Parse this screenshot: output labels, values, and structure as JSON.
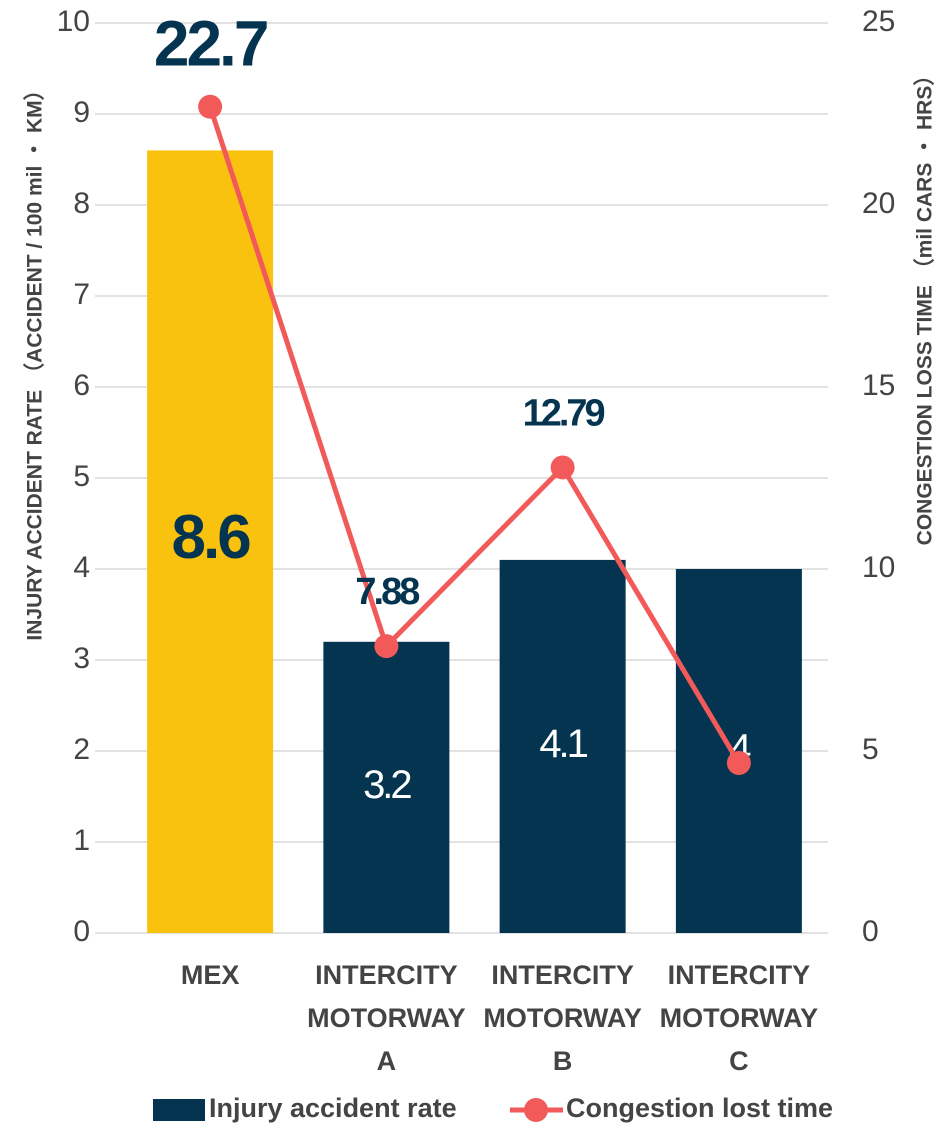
{
  "chart_data": {
    "type": "bar_line",
    "categories": [
      [
        "MEX"
      ],
      [
        "INTERCITY",
        "MOTORWAY",
        "A"
      ],
      [
        "INTERCITY",
        "MOTORWAY",
        "B"
      ],
      [
        "INTERCITY",
        "MOTORWAY",
        "C"
      ]
    ],
    "ylabel": "INJURY ACCIDENT RATE （ACCIDENT / 100 mil ・ KM）",
    "y2label": "CONGESTION LOSS TIME （mil CARS ・ HRS）",
    "ylim": [
      0,
      10
    ],
    "yticks": [
      0,
      1,
      2,
      3,
      4,
      5,
      6,
      7,
      8,
      9,
      10
    ],
    "y2lim": [
      0,
      25
    ],
    "y2ticks": [
      0,
      5,
      10,
      15,
      20,
      25
    ],
    "grid": true,
    "legend": "bottom",
    "series": [
      {
        "name": "Injury accident rate",
        "type": "bar",
        "color": "#04344f",
        "colors": [
          "#f9c20f",
          "#04344f",
          "#04344f",
          "#04344f"
        ],
        "values": [
          8.6,
          3.2,
          4.1,
          4
        ]
      },
      {
        "name": "Congestion lost time",
        "type": "line",
        "axis": "y2",
        "color": "#f25a5a",
        "values": [
          22.7,
          7.88,
          12.79,
          4.67
        ],
        "value_labels": [
          "22.7",
          "7.88",
          "12.79",
          null
        ]
      }
    ]
  }
}
